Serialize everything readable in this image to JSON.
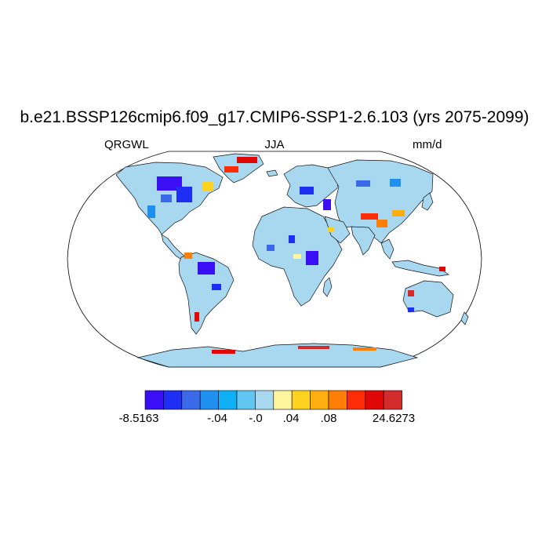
{
  "map": {
    "title": "b.e21.BSSP126cmip6.f09_g17.CMIP6-SSP1-2.6.103 (yrs 2075-2099)",
    "left_label": "QRGWL",
    "center_label": "JJA",
    "right_label": "mm/d",
    "projection": "Robinson",
    "ocean_color": "#ffffff",
    "land_base_color": "#a8d8f0"
  },
  "colorbar": {
    "colors": [
      "#3a0ff5",
      "#1e2ef2",
      "#3b6ae8",
      "#1f8ff0",
      "#0fb0f5",
      "#62c6f2",
      "#a8d8f0",
      "#fff59d",
      "#ffd21f",
      "#ffae0f",
      "#ff7f07",
      "#ff2d07",
      "#e00707",
      "#d42c2c"
    ],
    "labels": [
      "-8.5163",
      "-.04",
      "-.0",
      ".04",
      ".08",
      "24.6273"
    ]
  }
}
